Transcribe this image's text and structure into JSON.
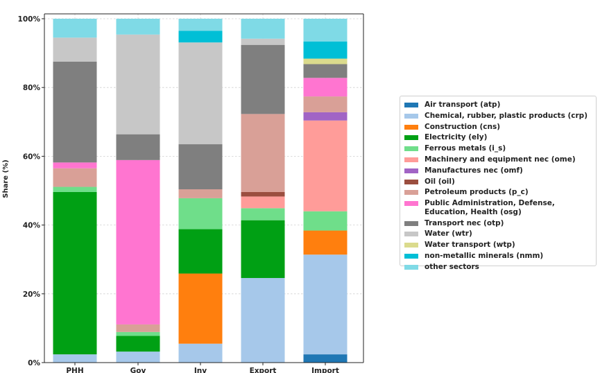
{
  "chart_data": {
    "type": "bar",
    "stacked": true,
    "title": "",
    "xlabel": "",
    "ylabel": "Share (%)",
    "ylim": [
      0,
      100
    ],
    "yticks": [
      "0%",
      "20%",
      "40%",
      "60%",
      "80%",
      "100%"
    ],
    "categories": [
      "PHH",
      "Gov",
      "Inv",
      "Export",
      "Import"
    ],
    "grid": true,
    "legend_position": "right",
    "series": [
      {
        "name": "Air transport (atp)",
        "color": "#1f77b4",
        "values": [
          0,
          0,
          0,
          0,
          2.4
        ]
      },
      {
        "name": "Chemical, rubber, plastic products (crp)",
        "color": "#a6c8ea",
        "values": [
          2.4,
          3.2,
          5.5,
          24.6,
          29.0
        ]
      },
      {
        "name": "Construction (cns)",
        "color": "#ff7f0e",
        "values": [
          0,
          0,
          20.4,
          0,
          7.0
        ]
      },
      {
        "name": "Electricity (ely)",
        "color": "#00a014",
        "values": [
          47.2,
          4.6,
          12.9,
          16.8,
          0
        ]
      },
      {
        "name": "Ferrous metals (i_s)",
        "color": "#6fde8a",
        "values": [
          1.5,
          1.1,
          9.0,
          3.5,
          5.6
        ]
      },
      {
        "name": "Machinery and equipment nec (ome)",
        "color": "#ff9c99",
        "values": [
          0,
          0,
          0,
          3.4,
          26.4
        ]
      },
      {
        "name": "Manufactures nec (omf)",
        "color": "#a164c5",
        "values": [
          0,
          0,
          0,
          0,
          2.4
        ]
      },
      {
        "name": "Oil (oil)",
        "color": "#9b4e3f",
        "values": [
          0,
          0,
          0,
          1.3,
          0
        ]
      },
      {
        "name": "Petroleum products (p_c)",
        "color": "#d9a097",
        "values": [
          5.4,
          2.2,
          2.6,
          22.7,
          4.6
        ]
      },
      {
        "name": "Public Administration, Defense,\nEducation, Health (osg)",
        "color": "#ff75d0",
        "values": [
          1.7,
          47.8,
          0,
          0,
          5.4
        ]
      },
      {
        "name": "Transport nec (otp)",
        "color": "#7f7f7f",
        "values": [
          29.3,
          7.5,
          13.1,
          20.1,
          4.0
        ]
      },
      {
        "name": "Water (wtr)",
        "color": "#c7c7c7",
        "values": [
          7.0,
          29.0,
          29.6,
          1.8,
          0
        ]
      },
      {
        "name": "Water transport (wtp)",
        "color": "#dbdb8d",
        "values": [
          0,
          0,
          0,
          0,
          1.6
        ]
      },
      {
        "name": "non-metallic minerals  (nmm)",
        "color": "#00bfd6",
        "values": [
          0,
          0,
          3.4,
          0,
          5.0
        ]
      },
      {
        "name": "other sectors",
        "color": "#7fdae6",
        "values": [
          5.5,
          4.6,
          3.5,
          5.8,
          6.6
        ]
      }
    ]
  }
}
